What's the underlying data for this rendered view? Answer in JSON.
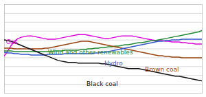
{
  "chart_data": {
    "type": "line",
    "x": [
      0,
      1,
      2,
      3,
      4,
      5,
      6,
      7,
      8,
      9,
      10,
      11,
      12,
      13,
      14,
      15,
      16,
      17,
      18,
      19,
      20,
      21,
      22,
      23,
      24,
      25,
      26,
      27,
      28,
      29,
      30,
      31,
      32,
      33,
      34,
      35,
      36,
      37,
      38,
      39,
      40,
      41,
      42,
      43,
      44,
      45,
      46,
      47,
      48,
      49,
      50,
      51,
      52,
      53,
      54,
      55,
      56,
      57,
      58,
      59
    ],
    "xlim": [
      0,
      59
    ],
    "ylim": [
      0,
      130
    ],
    "yticks": [
      0,
      13,
      26,
      39,
      52,
      65,
      78,
      91,
      104,
      117,
      130
    ],
    "grid": true,
    "tick_labels": false,
    "series": [
      {
        "name": "Gas",
        "color": "#dd00dd",
        "values": [
          55,
          62,
          70,
          76,
          80,
          82,
          83,
          84,
          84,
          83,
          82,
          81,
          80,
          79,
          79,
          79,
          80,
          81,
          82,
          83,
          84,
          85,
          86,
          86,
          86,
          85,
          84,
          83,
          82,
          81,
          80,
          80,
          81,
          82,
          83,
          84,
          84,
          84,
          84,
          83,
          82,
          81,
          80,
          79,
          78,
          77,
          77,
          77,
          76,
          76,
          75,
          75,
          75,
          74,
          74,
          73,
          73,
          72,
          72,
          72
        ]
      },
      {
        "name": "Wind and other renewables",
        "color": "#228833",
        "values": [
          62,
          62,
          62,
          61,
          61,
          61,
          61,
          61,
          61,
          61,
          61,
          61,
          61,
          61,
          61,
          62,
          62,
          62,
          63,
          63,
          63,
          63,
          63,
          64,
          64,
          65,
          65,
          66,
          66,
          67,
          67,
          68,
          68,
          69,
          69,
          70,
          71,
          71,
          72,
          73,
          74,
          74,
          75,
          76,
          77,
          77,
          78,
          79,
          80,
          81,
          82,
          83,
          84,
          85,
          86,
          87,
          88,
          89,
          90,
          92
        ]
      },
      {
        "name": "Brown coal",
        "color": "#994411",
        "values": [
          66,
          66,
          66,
          65,
          65,
          65,
          65,
          65,
          65,
          65,
          65,
          65,
          66,
          66,
          67,
          68,
          69,
          70,
          71,
          72,
          73,
          74,
          75,
          76,
          76,
          76,
          75,
          74,
          73,
          72,
          71,
          70,
          69,
          68,
          67,
          66,
          65,
          64,
          63,
          62,
          61,
          60,
          59,
          58,
          57,
          56,
          55,
          55,
          54,
          54,
          53,
          53,
          53,
          52,
          52,
          52,
          52,
          52,
          52,
          52
        ]
      },
      {
        "name": "Hydro",
        "color": "#3355cc",
        "values": [
          60,
          59,
          59,
          58,
          58,
          57,
          57,
          57,
          56,
          56,
          56,
          56,
          56,
          57,
          57,
          57,
          57,
          57,
          58,
          58,
          58,
          58,
          58,
          58,
          58,
          58,
          58,
          59,
          59,
          60,
          60,
          61,
          62,
          63,
          64,
          65,
          66,
          67,
          68,
          69,
          70,
          71,
          72,
          73,
          74,
          75,
          76,
          76,
          77,
          77,
          78,
          78,
          78,
          79,
          79,
          79,
          79,
          79,
          79,
          79
        ]
      },
      {
        "name": "Black coal",
        "color": "#111111",
        "values": [
          78,
          77,
          76,
          74,
          72,
          70,
          68,
          66,
          64,
          62,
          60,
          58,
          56,
          54,
          52,
          50,
          48,
          47,
          46,
          45,
          45,
          45,
          44,
          44,
          44,
          44,
          44,
          44,
          44,
          43,
          43,
          42,
          41,
          40,
          39,
          38,
          37,
          36,
          36,
          36,
          36,
          35,
          34,
          33,
          32,
          31,
          30,
          29,
          28,
          27,
          26,
          25,
          25,
          24,
          23,
          22,
          21,
          20,
          19,
          18
        ]
      }
    ]
  }
}
